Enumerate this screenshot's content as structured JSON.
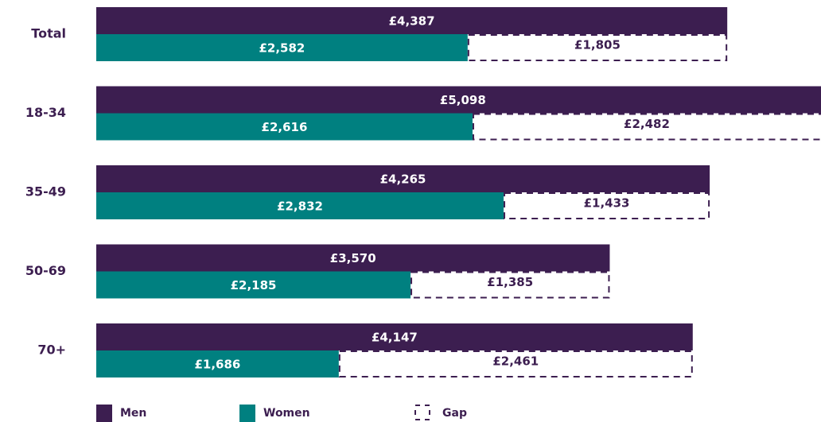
{
  "chart_data": {
    "type": "bar",
    "orientation": "horizontal",
    "categories": [
      "Total",
      "18-34",
      "35-49",
      "50-69",
      "70+"
    ],
    "series": [
      {
        "name": "Men",
        "color": "#3c1e50",
        "values": [
          4387,
          5098,
          4265,
          3570,
          4147
        ],
        "value_labels": [
          "£4,387",
          "£5,098",
          "£4,265",
          "£3,570",
          "£4,147"
        ]
      },
      {
        "name": "Women",
        "color": "#008080",
        "values": [
          2582,
          2616,
          2832,
          2185,
          1686
        ],
        "value_labels": [
          "£2,582",
          "£2,616",
          "£2,832",
          "£2,185",
          "£1,686"
        ]
      },
      {
        "name": "Gap",
        "color": "#3c1e50",
        "values": [
          1805,
          2482,
          1433,
          1385,
          2461
        ],
        "value_labels": [
          "£1,805",
          "£2,482",
          "£1,433",
          "£1,385",
          "£2,461"
        ]
      }
    ]
  }
}
